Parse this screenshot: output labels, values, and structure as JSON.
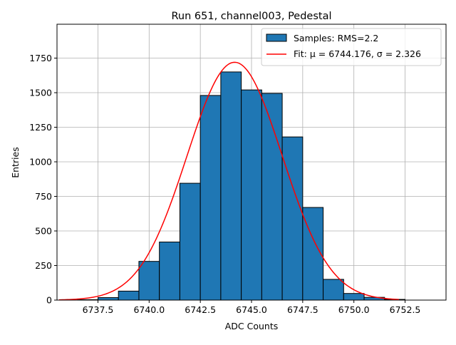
{
  "chart_data": {
    "type": "bar",
    "title": "Run 651, channel003, Pedestal",
    "xlabel": "ADC Counts",
    "ylabel": "Entries",
    "xlim": [
      6735.5,
      6754.5
    ],
    "ylim": [
      0,
      1995
    ],
    "xticks": [
      6737.5,
      6740.0,
      6742.5,
      6745.0,
      6747.5,
      6750.0,
      6752.5
    ],
    "xtick_labels": [
      "6737.5",
      "6740.0",
      "6742.5",
      "6745.0",
      "6747.5",
      "6750.0",
      "6752.5"
    ],
    "yticks": [
      0,
      250,
      500,
      750,
      1000,
      1250,
      1500,
      1750
    ],
    "ytick_labels": [
      "0",
      "250",
      "500",
      "750",
      "1000",
      "1250",
      "1500",
      "1750"
    ],
    "grid": true,
    "legend_position": "upper-right",
    "histogram": {
      "name": "Samples: RMS=2.2",
      "bin_edges": [
        6736.5,
        6737.5,
        6738.5,
        6739.5,
        6740.5,
        6741.5,
        6742.5,
        6743.5,
        6744.5,
        6745.5,
        6746.5,
        6747.5,
        6748.5,
        6749.5,
        6750.5,
        6751.5,
        6752.5,
        6753.5
      ],
      "counts": [
        3,
        18,
        65,
        280,
        420,
        845,
        1480,
        1650,
        1520,
        1495,
        1180,
        670,
        150,
        48,
        20,
        5,
        0
      ],
      "color": "#1f77b4",
      "edgecolor": "#000000"
    },
    "fit": {
      "name": "Fit: μ = 6744.176, σ = 2.326",
      "mu": 6744.176,
      "sigma": 2.326,
      "amplitude": 1720,
      "x_range": [
        6735.6,
        6752.2
      ],
      "color": "#ff0000"
    }
  }
}
